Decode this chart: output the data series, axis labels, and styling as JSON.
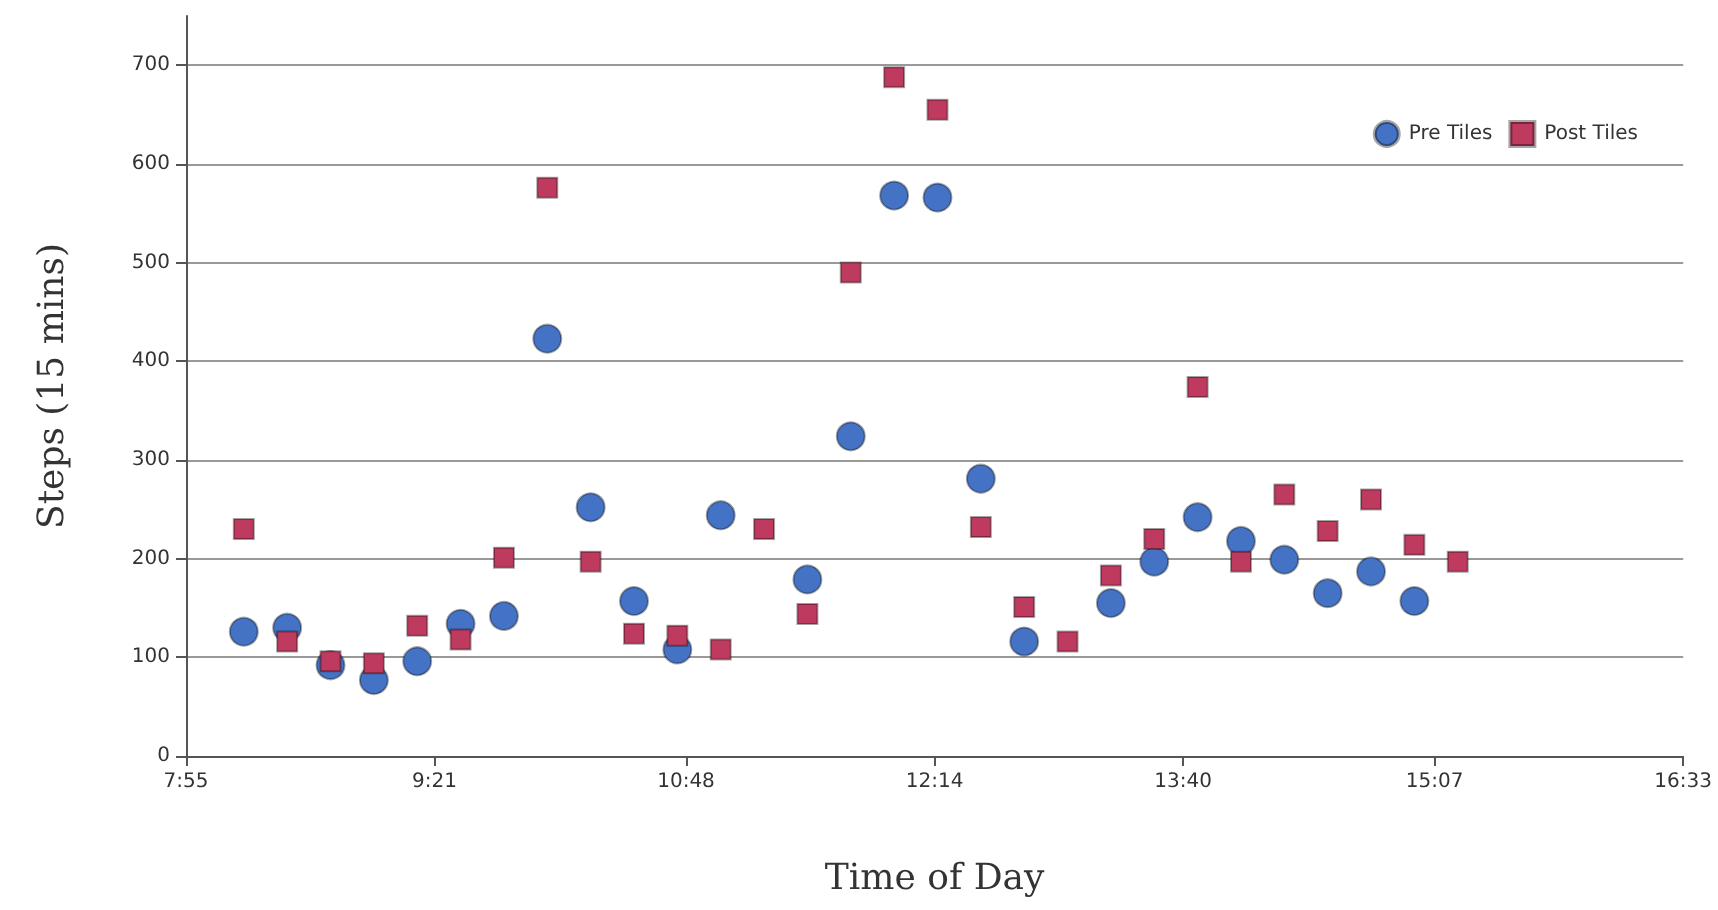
{
  "chart_data": {
    "type": "scatter",
    "xlabel": "Time of Day",
    "ylabel": "Steps (15 mins)",
    "x": [
      8.25,
      8.5,
      8.75,
      9.0,
      9.25,
      9.5,
      9.75,
      10.0,
      10.25,
      10.5,
      10.75,
      11.0,
      11.25,
      11.5,
      11.75,
      12.0,
      12.25,
      12.5,
      12.75,
      13.0,
      13.25,
      13.5,
      13.75,
      14.0,
      14.25,
      14.5,
      14.75,
      15.0,
      15.25
    ],
    "series": [
      {
        "name": "Pre Tiles",
        "color": "#4472c4",
        "marker": "circle",
        "values": [
          126,
          130,
          92,
          77,
          96,
          134,
          142,
          423,
          252,
          157,
          108,
          244,
          null,
          179,
          324,
          568,
          566,
          281,
          116,
          null,
          155,
          197,
          242,
          218,
          199,
          165,
          187,
          157,
          null
        ]
      },
      {
        "name": "Post Tiles",
        "color": "#be3a5f",
        "marker": "square",
        "values": [
          230,
          116,
          96,
          94,
          132,
          118,
          201,
          576,
          197,
          124,
          122,
          108,
          230,
          144,
          490,
          688,
          655,
          232,
          151,
          116,
          183,
          220,
          374,
          197,
          265,
          228,
          260,
          214,
          197
        ]
      }
    ],
    "xlim": [
      7.9167,
      16.55
    ],
    "xticks": [
      {
        "value": 7.9167,
        "label": "7:55"
      },
      {
        "value": 9.35,
        "label": "9:21"
      },
      {
        "value": 10.8,
        "label": "10:48"
      },
      {
        "value": 12.2333,
        "label": "12:14"
      },
      {
        "value": 13.6667,
        "label": "13:40"
      },
      {
        "value": 15.1167,
        "label": "15:07"
      },
      {
        "value": 16.55,
        "label": "16:33"
      }
    ],
    "ylim": [
      0,
      750
    ],
    "yticks": [
      0,
      100,
      200,
      300,
      400,
      500,
      600,
      700
    ],
    "grid": "y",
    "legend": "top right"
  }
}
